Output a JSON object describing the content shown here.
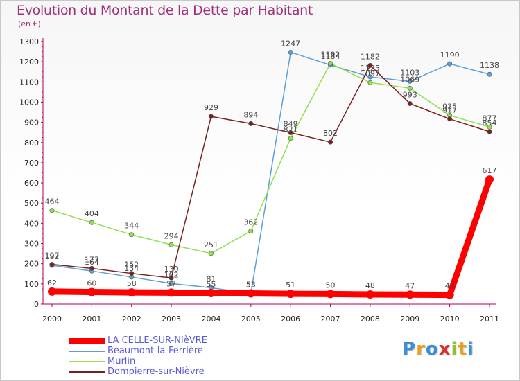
{
  "header": {
    "title": "Evolution du Montant de la Dette par Habitant",
    "subtitle": "(en €)"
  },
  "logo": {
    "letters": [
      "P",
      "r",
      "o",
      "x",
      "i",
      "t",
      "i"
    ]
  },
  "chart_data": {
    "type": "line",
    "title": "Evolution du Montant de la Dette par Habitant",
    "ylabel": "(en €)",
    "x": [
      2000,
      2001,
      2002,
      2003,
      2004,
      2005,
      2006,
      2007,
      2008,
      2009,
      2010,
      2011
    ],
    "ylim": [
      0,
      1300
    ],
    "yticks": [
      0,
      100,
      200,
      300,
      400,
      500,
      600,
      700,
      800,
      900,
      1000,
      1100,
      1200,
      1300
    ],
    "grid": false,
    "legend_position": "bottom-left",
    "series": [
      {
        "name": "LA CELLE-SUR-NIèVRE",
        "color": "#ff0000",
        "values": [
          62,
          60,
          58,
          57,
          55,
          53,
          51,
          50,
          48,
          47,
          46,
          617
        ]
      },
      {
        "name": "Beaumont-la-Ferrière",
        "color": "#5b9fd8",
        "values": [
          192,
          164,
          134,
          102,
          81,
          53,
          1247,
          1184,
          1125,
          1103,
          1190,
          1138
        ]
      },
      {
        "name": "Murlin",
        "color": "#90e050",
        "values": [
          464,
          404,
          344,
          294,
          251,
          362,
          821,
          1192,
          1097,
          1069,
          935,
          877
        ]
      },
      {
        "name": "Dompierre-sur-Nièvre",
        "color": "#7a2020",
        "values": [
          197,
          177,
          152,
          130,
          929,
          894,
          849,
          802,
          1182,
          993,
          917,
          854
        ]
      }
    ]
  }
}
